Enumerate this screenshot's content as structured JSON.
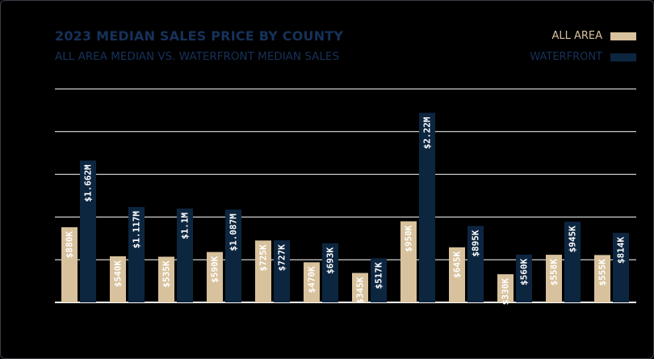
{
  "colors": {
    "background": "#000000",
    "all_area": "#d8c29d",
    "waterfront": "#0d2640",
    "title": "#16325a",
    "grid": "#ffffff",
    "label": "#ffffff"
  },
  "chart_data": {
    "type": "bar",
    "title": "2023 MEDIAN SALES PRICE BY COUNTY",
    "subtitle": "ALL AREA MEDIAN VS. WATERFRONT MEDIAN SALES",
    "xlabel": "",
    "ylabel": "",
    "ylim": [
      0,
      2500000
    ],
    "grid": true,
    "legend_position": "top-right",
    "categories": [
      "",
      "",
      "",
      "",
      "",
      "",
      "",
      "",
      "",
      "",
      "",
      ""
    ],
    "series": [
      {
        "name": "ALL AREA",
        "color": "#d8c29d",
        "values": [
          880000,
          540000,
          535000,
          590000,
          725000,
          470000,
          345000,
          950000,
          645000,
          330000,
          558000,
          555000
        ],
        "labels": [
          "$880K",
          "$540K",
          "$535K",
          "$590K",
          "$725K",
          "$470K",
          "$345K",
          "$950K",
          "$645K",
          "$330K",
          "$558K",
          "$555K"
        ]
      },
      {
        "name": "WATERFRONT",
        "color": "#0d2640",
        "values": [
          1662000,
          1117000,
          1100000,
          1087000,
          727000,
          693000,
          517000,
          2220000,
          895000,
          560000,
          945000,
          814000
        ],
        "labels": [
          "$1.662M",
          "$1.117M",
          "$1.1M",
          "$1.087M",
          "$727K",
          "$693K",
          "$517K",
          "$2.22M",
          "$895K",
          "$560K",
          "$945K",
          "$814K"
        ]
      }
    ]
  }
}
